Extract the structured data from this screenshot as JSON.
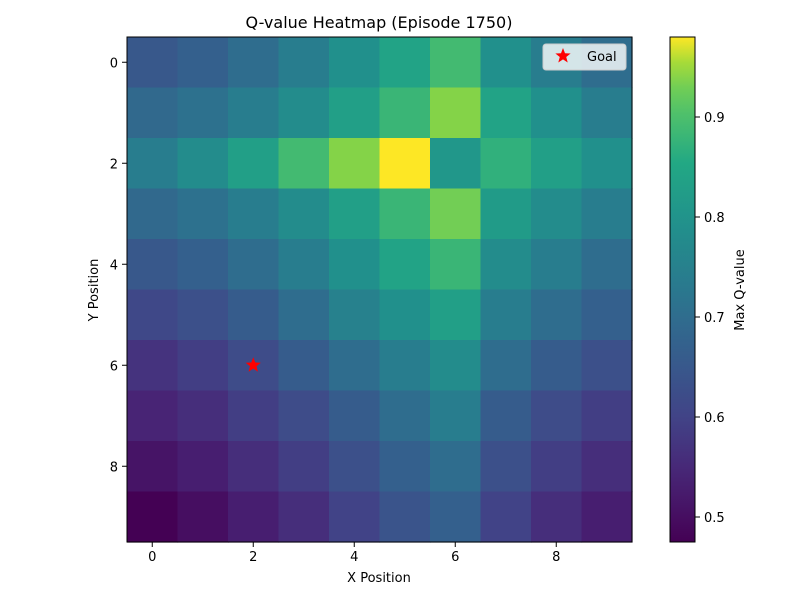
{
  "chart_data": {
    "type": "heatmap",
    "title": "Q-value Heatmap (Episode 1750)",
    "xlabel": "X Position",
    "ylabel": "Y Position",
    "x_ticks": [
      0,
      2,
      4,
      6,
      8
    ],
    "y_ticks": [
      0,
      2,
      4,
      6,
      8
    ],
    "grid": false,
    "colormap": "viridis",
    "colorbar": {
      "label": "Max Q-value",
      "range": [
        0.475,
        0.98
      ],
      "ticks": [
        0.5,
        0.6,
        0.7,
        0.8,
        0.9
      ]
    },
    "values": [
      [
        0.65,
        0.67,
        0.7,
        0.74,
        0.79,
        0.84,
        0.89,
        0.79,
        0.74,
        0.7
      ],
      [
        0.69,
        0.71,
        0.74,
        0.78,
        0.83,
        0.88,
        0.94,
        0.84,
        0.79,
        0.74
      ],
      [
        0.74,
        0.78,
        0.83,
        0.89,
        0.94,
        0.98,
        0.81,
        0.87,
        0.83,
        0.79
      ],
      [
        0.69,
        0.71,
        0.74,
        0.78,
        0.83,
        0.88,
        0.93,
        0.82,
        0.78,
        0.74
      ],
      [
        0.65,
        0.67,
        0.7,
        0.74,
        0.79,
        0.84,
        0.88,
        0.78,
        0.74,
        0.7
      ],
      [
        0.61,
        0.63,
        0.66,
        0.7,
        0.75,
        0.79,
        0.83,
        0.74,
        0.7,
        0.67
      ],
      [
        0.57,
        0.59,
        0.62,
        0.66,
        0.7,
        0.74,
        0.78,
        0.7,
        0.66,
        0.63
      ],
      [
        0.54,
        0.56,
        0.59,
        0.62,
        0.66,
        0.7,
        0.74,
        0.66,
        0.62,
        0.59
      ],
      [
        0.51,
        0.53,
        0.56,
        0.59,
        0.63,
        0.67,
        0.7,
        0.63,
        0.59,
        0.56
      ],
      [
        0.475,
        0.5,
        0.53,
        0.56,
        0.6,
        0.64,
        0.67,
        0.6,
        0.56,
        0.53
      ]
    ],
    "goal": {
      "x": 2,
      "y": 6,
      "marker": "star",
      "color": "#ff0000"
    },
    "legend": {
      "placement": "top-right",
      "entries": [
        "Goal"
      ]
    }
  }
}
